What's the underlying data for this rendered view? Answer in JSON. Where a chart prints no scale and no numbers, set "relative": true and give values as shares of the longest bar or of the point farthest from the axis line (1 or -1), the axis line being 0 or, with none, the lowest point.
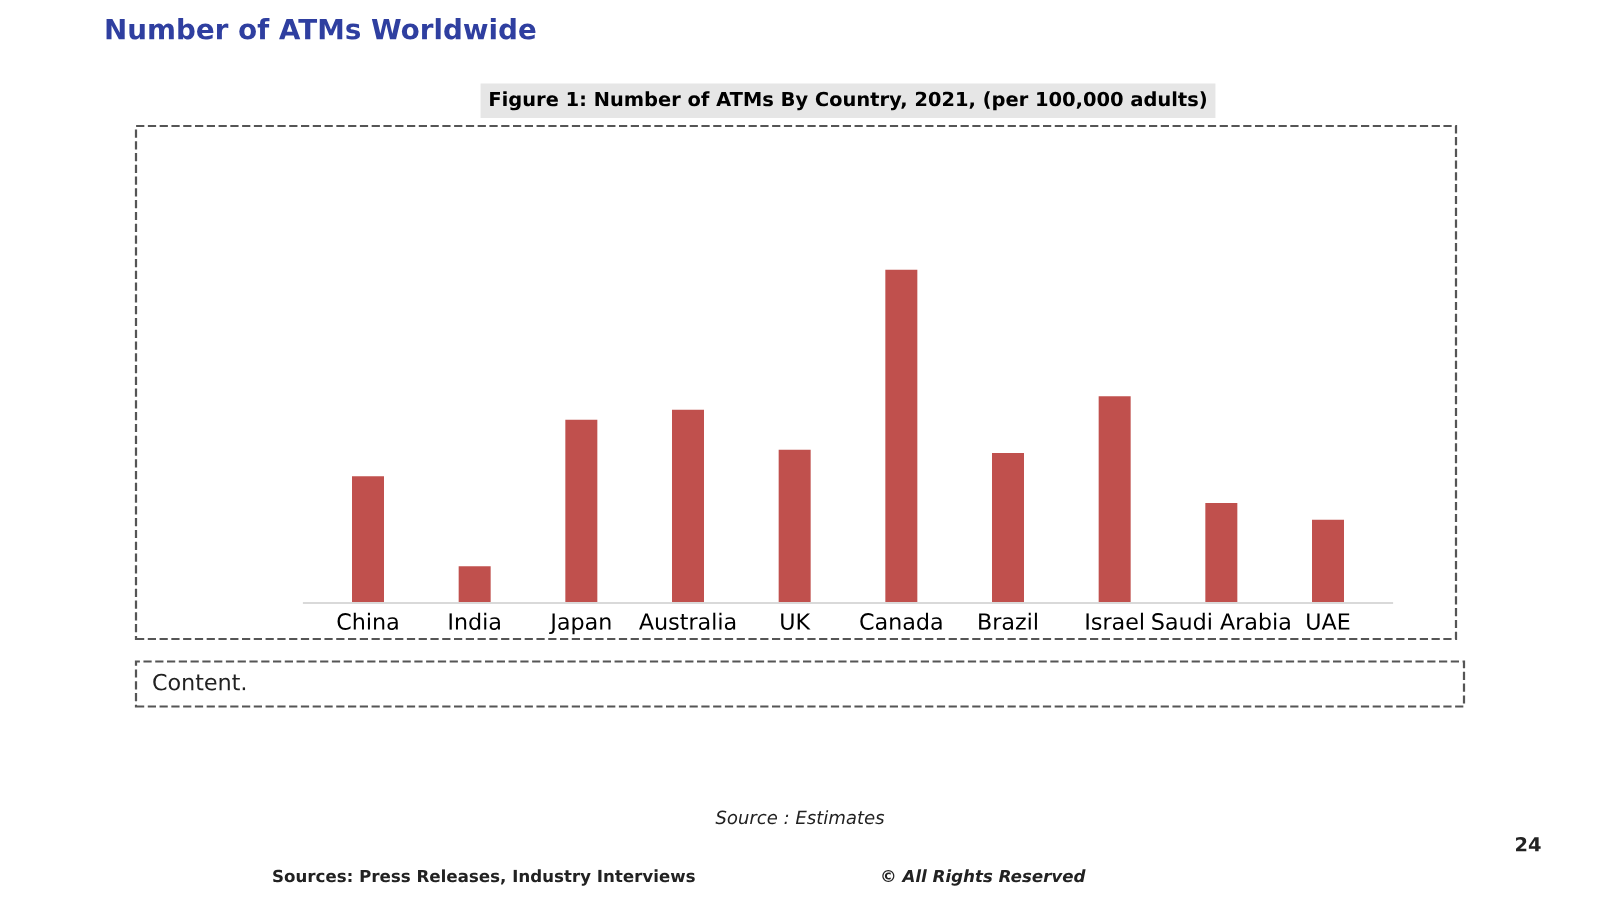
{
  "chart_data": {
    "type": "bar",
    "title": "Number of ATMs Worldwide",
    "subtitle": "Figure 1: Number of ATMs By Country, 2021, (per 100,000 adults)",
    "categories": [
      "China",
      "India",
      "Japan",
      "Australia",
      "UK",
      "Canada",
      "Brazil",
      "Israel",
      "Saudi Arabia",
      "UAE"
    ],
    "values": [
      0.38,
      0.11,
      0.55,
      0.58,
      0.46,
      1,
      0.45,
      0.62,
      0.3,
      0.25
    ],
    "color": "#c0504d",
    "relative": true,
    "grid": false,
    "legend": false,
    "annotations": [
      "Content.",
      "Source : Estimates",
      "Sources: Press Releases, Industry Interviews",
      "© All Rights Reserved",
      "24"
    ]
  }
}
